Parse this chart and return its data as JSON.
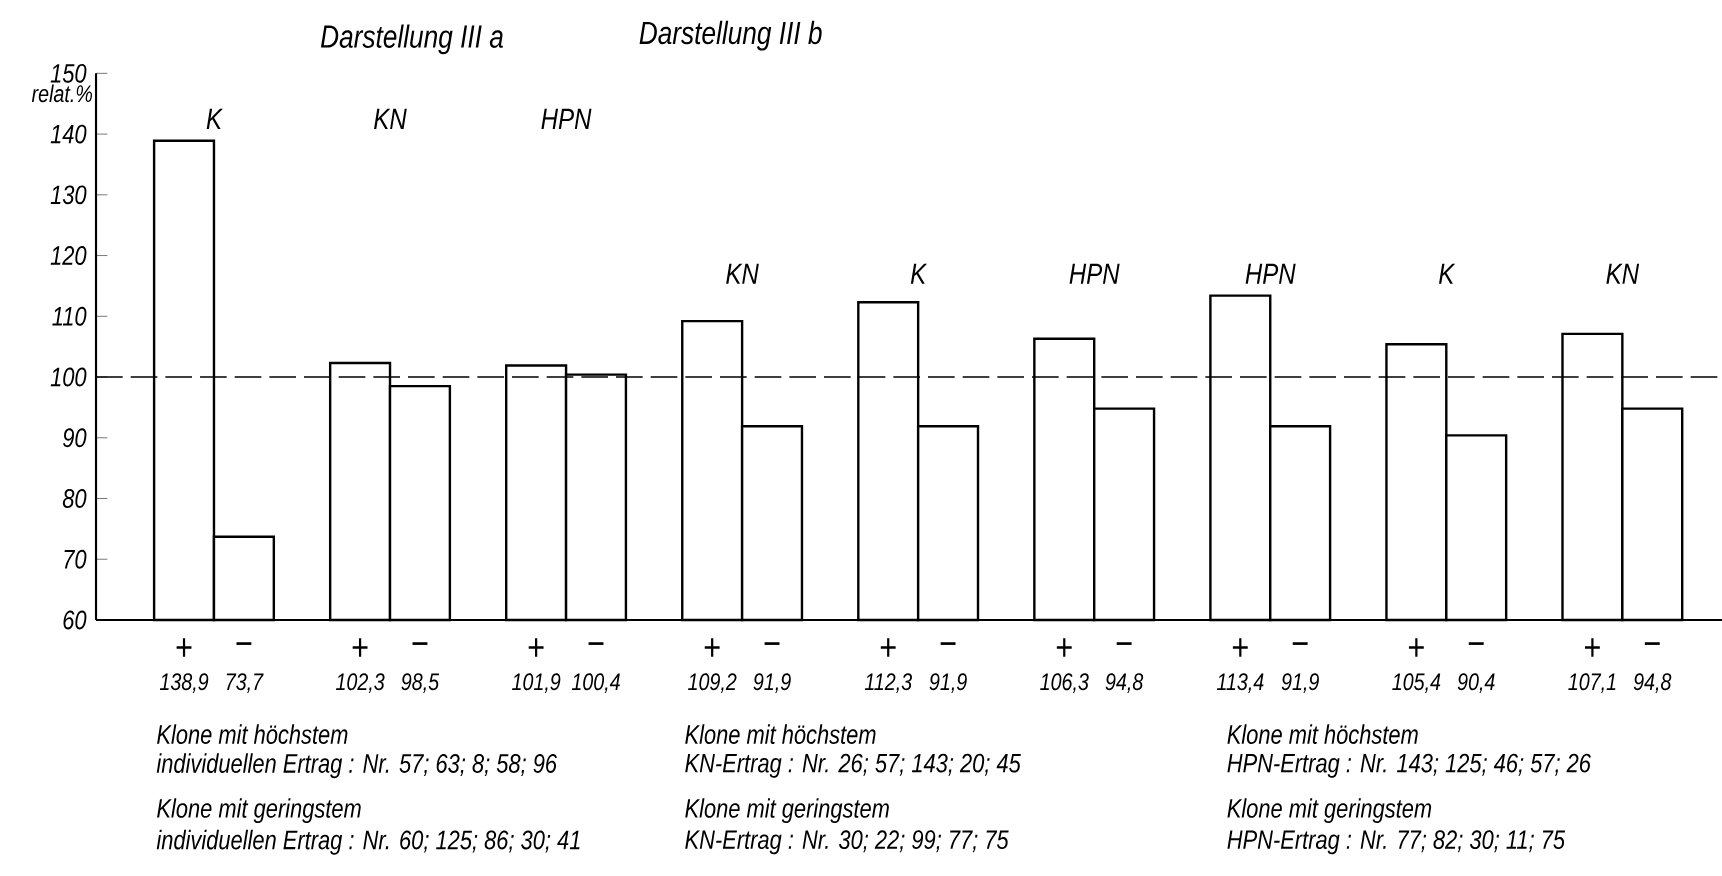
{
  "chart_data": {
    "type": "bar",
    "ylabel": "relat.%",
    "categories": [
      "K",
      "KN",
      "HPN",
      "KN",
      "K",
      "HPN",
      "HPN",
      "K",
      "KN"
    ],
    "series": [
      {
        "name": "+",
        "color": "#ffffff",
        "values": [
          138.9,
          102.3,
          101.9,
          109.2,
          112.3,
          106.3,
          113.4,
          105.4,
          107.1
        ],
        "value_labels": [
          "138,9",
          "102,3",
          "101,9",
          "109,2",
          "112,3",
          "106,3",
          "113,4",
          "105,4",
          "107,1"
        ]
      },
      {
        "name": "−",
        "color": "#ffffff",
        "values": [
          73.7,
          98.5,
          100.4,
          91.9,
          91.9,
          94.8,
          91.9,
          90.4,
          94.8
        ],
        "value_labels": [
          "73,7",
          "98,5",
          "100,4",
          "91,9",
          "91,9",
          "94,8",
          "91,9",
          "90,4",
          "94,8"
        ]
      }
    ],
    "ylim": [
      60,
      150
    ],
    "yticks": [
      60,
      70,
      80,
      90,
      100,
      110,
      120,
      130,
      140,
      150
    ],
    "ref_lines": [
      {
        "axis": "y",
        "value": 100,
        "line_style": "dashed"
      }
    ],
    "annotations": [
      "Darstellung III a",
      "Darstellung III b",
      "Klone mit höchstem",
      "individuellen Ertrag : Nr. 57; 63; 8; 58; 96",
      "Klone mit geringstem",
      "individuellen Ertrag : Nr. 60; 125; 86; 30; 41",
      "Klone mit höchstem",
      "KN-Ertrag :       Nr. 26; 57; 143; 20; 45",
      "Klone mit geringstem",
      "KN-Ertrag :       Nr. 30; 22; 99; 77; 75",
      "Klone mit höchstem",
      "HPN-Ertrag :       Nr. 143; 125; 46; 57; 26",
      "Klone mit geringstem",
      "HPN-Ertrag :       Nr. 77; 82; 30; 11; 75"
    ]
  }
}
